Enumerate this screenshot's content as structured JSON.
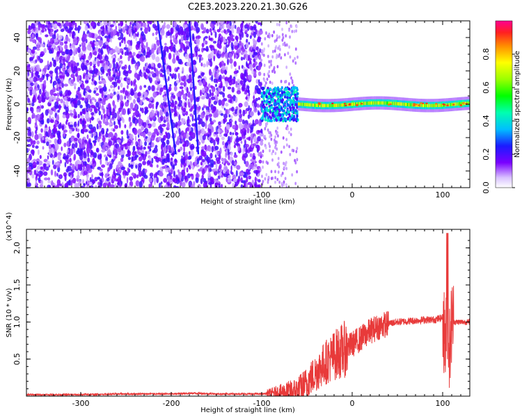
{
  "title": "C2E3.2023.220.21.30.G26",
  "chart_data": [
    {
      "type": "heatmap",
      "xlabel": "Height of straight line (km)",
      "ylabel": "Frequency (Hz)",
      "xlim": [
        -360,
        130
      ],
      "ylim": [
        -50,
        50
      ],
      "x_ticks": [
        "-300",
        "-200",
        "-100",
        "0",
        "100"
      ],
      "y_ticks": [
        "-40",
        "-20",
        "0",
        "20",
        "40"
      ],
      "colorbar": {
        "label": "Normalized spectral amplitude",
        "range": [
          0.0,
          1.0
        ],
        "ticks": [
          "0.0",
          "0.2",
          "0.4",
          "0.6",
          "0.8"
        ]
      },
      "features": [
        {
          "x_range": [
            -360,
            -100
          ],
          "frequency_range": [
            -50,
            50
          ],
          "amplitude": "low (0.1-0.2)"
        },
        {
          "x_range": [
            -100,
            -60
          ],
          "frequency_range": [
            -10,
            10
          ],
          "amplitude": "0.2-0.5"
        },
        {
          "x_range": [
            -60,
            130
          ],
          "frequency_range": [
            -2,
            2
          ],
          "amplitude": "0.5-0.9"
        }
      ]
    },
    {
      "type": "line",
      "xlabel": "Height of straight line (km)",
      "ylabel": "SNR (10 * v/v)",
      "y_multiplier": "(x10^4)",
      "xlim": [
        -360,
        130
      ],
      "ylim": [
        0,
        2.25
      ],
      "x_ticks": [
        "-300",
        "-200",
        "-100",
        "0",
        "100"
      ],
      "y_ticks": [
        "0.5",
        "1.0",
        "1.5",
        "2.0"
      ],
      "series": [
        {
          "color": "#e83a3a",
          "x": [
            -360,
            -300,
            -250,
            -200,
            -175,
            -150,
            -100,
            -90,
            -80,
            -70,
            -60,
            -50,
            -40,
            -30,
            -20,
            -10,
            0,
            10,
            20,
            30,
            40,
            50,
            60,
            70,
            80,
            90,
            95,
            100,
            103,
            105,
            108,
            110,
            115,
            120,
            130
          ],
          "y": [
            0.02,
            0.02,
            0.03,
            0.03,
            0.04,
            0.03,
            0.03,
            0.04,
            0.05,
            0.06,
            0.08,
            0.18,
            0.32,
            0.45,
            0.55,
            0.62,
            0.7,
            0.78,
            0.88,
            0.94,
            0.98,
            1.0,
            1.01,
            1.02,
            1.03,
            1.03,
            1.04,
            1.06,
            0.7,
            1.1,
            0.6,
            1.02,
            1.0,
            1.0,
            1.0
          ]
        }
      ]
    }
  ]
}
